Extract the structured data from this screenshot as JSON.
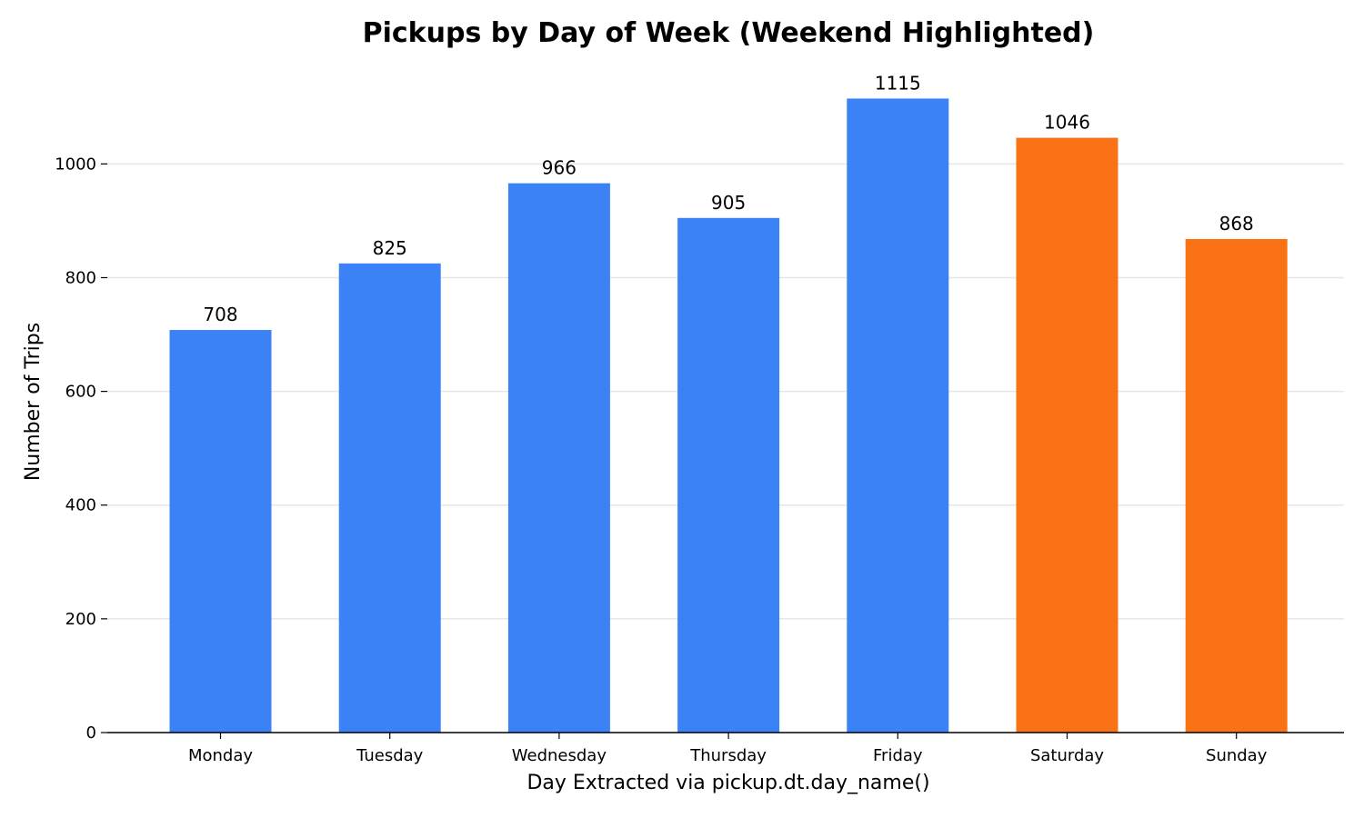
{
  "chart_data": {
    "type": "bar",
    "title": "Pickups by Day of Week (Weekend Highlighted)",
    "xlabel": "Day Extracted via pickup.dt.day_name()",
    "ylabel": "Number of Trips",
    "categories": [
      "Monday",
      "Tuesday",
      "Wednesday",
      "Thursday",
      "Friday",
      "Saturday",
      "Sunday"
    ],
    "values": [
      708,
      825,
      966,
      905,
      1115,
      1046,
      868
    ],
    "highlighted": [
      "Saturday",
      "Sunday"
    ],
    "colors": {
      "weekday": "#3b82f6",
      "weekend": "#f97316",
      "grid": "#e6e6e6",
      "axis": "#000000"
    },
    "ylim": [
      0,
      1170
    ],
    "yticks": [
      0,
      200,
      400,
      600,
      800,
      1000
    ],
    "grid": "horizontal",
    "data_labels": true
  }
}
